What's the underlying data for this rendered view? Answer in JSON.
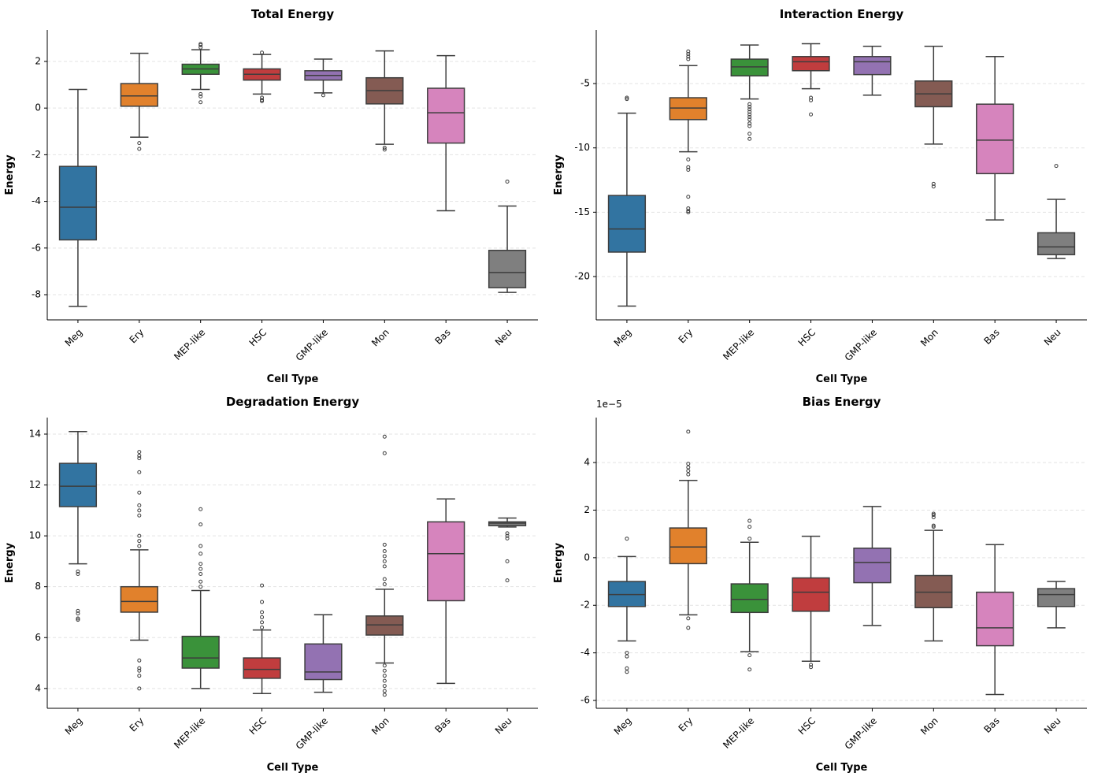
{
  "chart_data": [
    {
      "type": "box",
      "title": "Total Energy",
      "xlabel": "Cell Type",
      "ylabel": "Energy",
      "categories": [
        "Meg",
        "Ery",
        "MEP-like",
        "HSC",
        "GMP-like",
        "Mon",
        "Bas",
        "Neu"
      ],
      "colors": [
        "#3274a1",
        "#e1812c",
        "#3a923a",
        "#c03d3e",
        "#9372b2",
        "#845b53",
        "#d684bd",
        "#7f7f7f"
      ],
      "ylim": [
        -9.08,
        3.35
      ],
      "yticks": [
        -8,
        -6,
        -4,
        -2,
        0,
        2
      ],
      "grid": true,
      "boxes": [
        {
          "whislo": -8.5,
          "q1": -5.65,
          "med": -4.25,
          "q3": -2.5,
          "whishi": 0.8,
          "fliers": []
        },
        {
          "whislo": -1.25,
          "q1": 0.08,
          "med": 0.52,
          "q3": 1.05,
          "whishi": 2.35,
          "fliers": [
            -1.5,
            -1.75
          ]
        },
        {
          "whislo": 0.8,
          "q1": 1.45,
          "med": 1.68,
          "q3": 1.88,
          "whishi": 2.5,
          "fliers": [
            2.6,
            2.7,
            2.75,
            0.6,
            0.5,
            0.25
          ]
        },
        {
          "whislo": 0.6,
          "q1": 1.2,
          "med": 1.45,
          "q3": 1.68,
          "whishi": 2.3,
          "fliers": [
            2.38,
            0.45,
            0.35,
            0.3
          ]
        },
        {
          "whislo": 0.65,
          "q1": 1.2,
          "med": 1.4,
          "q3": 1.6,
          "whishi": 2.1,
          "fliers": [
            0.55
          ]
        },
        {
          "whislo": -1.55,
          "q1": 0.18,
          "med": 0.75,
          "q3": 1.3,
          "whishi": 2.45,
          "fliers": [
            -1.7,
            -1.78
          ]
        },
        {
          "whislo": -4.4,
          "q1": -1.5,
          "med": -0.2,
          "q3": 0.85,
          "whishi": 2.25,
          "fliers": []
        },
        {
          "whislo": -7.9,
          "q1": -7.7,
          "med": -7.05,
          "q3": -6.1,
          "whishi": -4.2,
          "fliers": [
            -3.15
          ]
        }
      ]
    },
    {
      "type": "box",
      "title": "Interaction Energy",
      "xlabel": "Cell Type",
      "ylabel": "Energy",
      "categories": [
        "Meg",
        "Ery",
        "MEP-like",
        "HSC",
        "GMP-like",
        "Mon",
        "Bas",
        "Neu"
      ],
      "colors": [
        "#3274a1",
        "#e1812c",
        "#3a923a",
        "#c03d3e",
        "#9372b2",
        "#845b53",
        "#d684bd",
        "#7f7f7f"
      ],
      "ylim": [
        -23.37,
        -0.83
      ],
      "yticks": [
        -20,
        -15,
        -10,
        -5
      ],
      "grid": true,
      "boxes": [
        {
          "whislo": -22.3,
          "q1": -18.1,
          "med": -16.3,
          "q3": -13.7,
          "whishi": -7.3,
          "fliers": [
            -6.1,
            -6.2
          ]
        },
        {
          "whislo": -10.3,
          "q1": -7.8,
          "med": -6.9,
          "q3": -6.1,
          "whishi": -3.6,
          "fliers": [
            -2.5,
            -2.7,
            -2.9,
            -3.1,
            -10.9,
            -11.5,
            -11.7,
            -13.8,
            -14.7,
            -14.9,
            -15.0
          ]
        },
        {
          "whislo": -6.2,
          "q1": -4.4,
          "med": -3.7,
          "q3": -3.1,
          "whishi": -2.0,
          "fliers": [
            -6.6,
            -6.8,
            -7.0,
            -7.2,
            -7.4,
            -7.6,
            -7.8,
            -8.1,
            -8.3,
            -8.9,
            -9.3
          ]
        },
        {
          "whislo": -5.4,
          "q1": -4.0,
          "med": -3.3,
          "q3": -2.9,
          "whishi": -1.9,
          "fliers": [
            -6.1,
            -6.3,
            -7.4
          ]
        },
        {
          "whislo": -5.9,
          "q1": -4.3,
          "med": -3.3,
          "q3": -2.9,
          "whishi": -2.1,
          "fliers": []
        },
        {
          "whislo": -9.7,
          "q1": -6.8,
          "med": -5.8,
          "q3": -4.8,
          "whishi": -2.1,
          "fliers": [
            -12.8,
            -13.0
          ]
        },
        {
          "whislo": -15.6,
          "q1": -12.0,
          "med": -9.4,
          "q3": -6.6,
          "whishi": -2.9,
          "fliers": []
        },
        {
          "whislo": -18.6,
          "q1": -18.3,
          "med": -17.7,
          "q3": -16.6,
          "whishi": -14.0,
          "fliers": [
            -11.4
          ]
        }
      ]
    },
    {
      "type": "box",
      "title": "Degradation Energy",
      "xlabel": "Cell Type",
      "ylabel": "Energy",
      "categories": [
        "Meg",
        "Ery",
        "MEP-like",
        "HSC",
        "GMP-like",
        "Mon",
        "Bas",
        "Neu"
      ],
      "colors": [
        "#3274a1",
        "#e1812c",
        "#3a923a",
        "#c03d3e",
        "#9372b2",
        "#845b53",
        "#d684bd",
        "#7f7f7f"
      ],
      "ylim": [
        3.22,
        14.65
      ],
      "yticks": [
        4,
        6,
        8,
        10,
        12,
        14
      ],
      "grid": true,
      "boxes": [
        {
          "whislo": 8.9,
          "q1": 11.15,
          "med": 11.95,
          "q3": 12.85,
          "whishi": 14.1,
          "fliers": [
            8.6,
            8.5,
            7.05,
            6.95,
            6.75,
            6.7
          ]
        },
        {
          "whislo": 5.9,
          "q1": 7.0,
          "med": 7.42,
          "q3": 8.0,
          "whishi": 9.45,
          "fliers": [
            9.6,
            9.8,
            10.0,
            10.8,
            11.0,
            11.2,
            11.7,
            12.5,
            13.05,
            13.15,
            13.3,
            5.1,
            4.8,
            4.7,
            4.5,
            4.0
          ]
        },
        {
          "whislo": 4.0,
          "q1": 4.8,
          "med": 5.2,
          "q3": 6.05,
          "whishi": 7.85,
          "fliers": [
            8.0,
            8.2,
            8.5,
            8.7,
            8.9,
            9.3,
            9.6,
            10.45,
            11.05
          ]
        },
        {
          "whislo": 3.8,
          "q1": 4.4,
          "med": 4.75,
          "q3": 5.2,
          "whishi": 6.3,
          "fliers": [
            6.4,
            6.6,
            6.8,
            7.0,
            7.4,
            8.05
          ]
        },
        {
          "whislo": 3.85,
          "q1": 4.35,
          "med": 4.65,
          "q3": 5.75,
          "whishi": 6.9,
          "fliers": []
        },
        {
          "whislo": 5.0,
          "q1": 6.1,
          "med": 6.5,
          "q3": 6.85,
          "whishi": 7.9,
          "fliers": [
            8.1,
            8.3,
            8.8,
            9.0,
            9.2,
            9.4,
            9.65,
            13.25,
            13.9,
            4.9,
            4.7,
            4.5,
            4.3,
            4.1,
            3.9,
            3.75
          ]
        },
        {
          "whislo": 4.2,
          "q1": 7.45,
          "med": 9.3,
          "q3": 10.55,
          "whishi": 11.45,
          "fliers": []
        },
        {
          "whislo": 10.35,
          "q1": 10.4,
          "med": 10.5,
          "q3": 10.55,
          "whishi": 10.7,
          "fliers": [
            10.1,
            10.0,
            9.9,
            9.0,
            8.25
          ]
        }
      ]
    },
    {
      "type": "box",
      "title": "Bias Energy",
      "xlabel": "Cell Type",
      "ylabel": "Energy",
      "offset_text": "1e−5",
      "categories": [
        "Meg",
        "Ery",
        "MEP-like",
        "HSC",
        "GMP-like",
        "Mon",
        "Bas",
        "Neu"
      ],
      "colors": [
        "#3274a1",
        "#e1812c",
        "#3a923a",
        "#c03d3e",
        "#9372b2",
        "#845b53",
        "#d684bd",
        "#7f7f7f"
      ],
      "ylim": [
        -6.33,
        5.89
      ],
      "yticks": [
        -6,
        -4,
        -2,
        0,
        2,
        4
      ],
      "grid": true,
      "boxes": [
        {
          "whislo": -3.5,
          "q1": -2.05,
          "med": -1.55,
          "q3": -1.0,
          "whishi": 0.05,
          "fliers": [
            0.8,
            -4.0,
            -4.15,
            -4.65,
            -4.8
          ]
        },
        {
          "whislo": -2.4,
          "q1": -0.25,
          "med": 0.45,
          "q3": 1.25,
          "whishi": 3.25,
          "fliers": [
            3.5,
            3.65,
            3.8,
            3.95,
            5.3,
            -2.55,
            -2.95
          ]
        },
        {
          "whislo": -3.95,
          "q1": -2.3,
          "med": -1.75,
          "q3": -1.1,
          "whishi": 0.65,
          "fliers": [
            0.8,
            1.3,
            1.55,
            -4.1,
            -4.7
          ]
        },
        {
          "whislo": -4.35,
          "q1": -2.25,
          "med": -1.45,
          "q3": -0.85,
          "whishi": 0.9,
          "fliers": [
            -4.5,
            -4.6
          ]
        },
        {
          "whislo": -2.85,
          "q1": -1.05,
          "med": -0.2,
          "q3": 0.4,
          "whishi": 2.15,
          "fliers": []
        },
        {
          "whislo": -3.5,
          "q1": -2.1,
          "med": -1.45,
          "q3": -0.75,
          "whishi": 1.15,
          "fliers": [
            1.3,
            1.35,
            1.7,
            1.8,
            1.85
          ]
        },
        {
          "whislo": -5.75,
          "q1": -3.7,
          "med": -2.95,
          "q3": -1.45,
          "whishi": 0.55,
          "fliers": []
        },
        {
          "whislo": -2.95,
          "q1": -2.05,
          "med": -1.55,
          "q3": -1.3,
          "whishi": -1.0,
          "fliers": []
        }
      ]
    }
  ]
}
